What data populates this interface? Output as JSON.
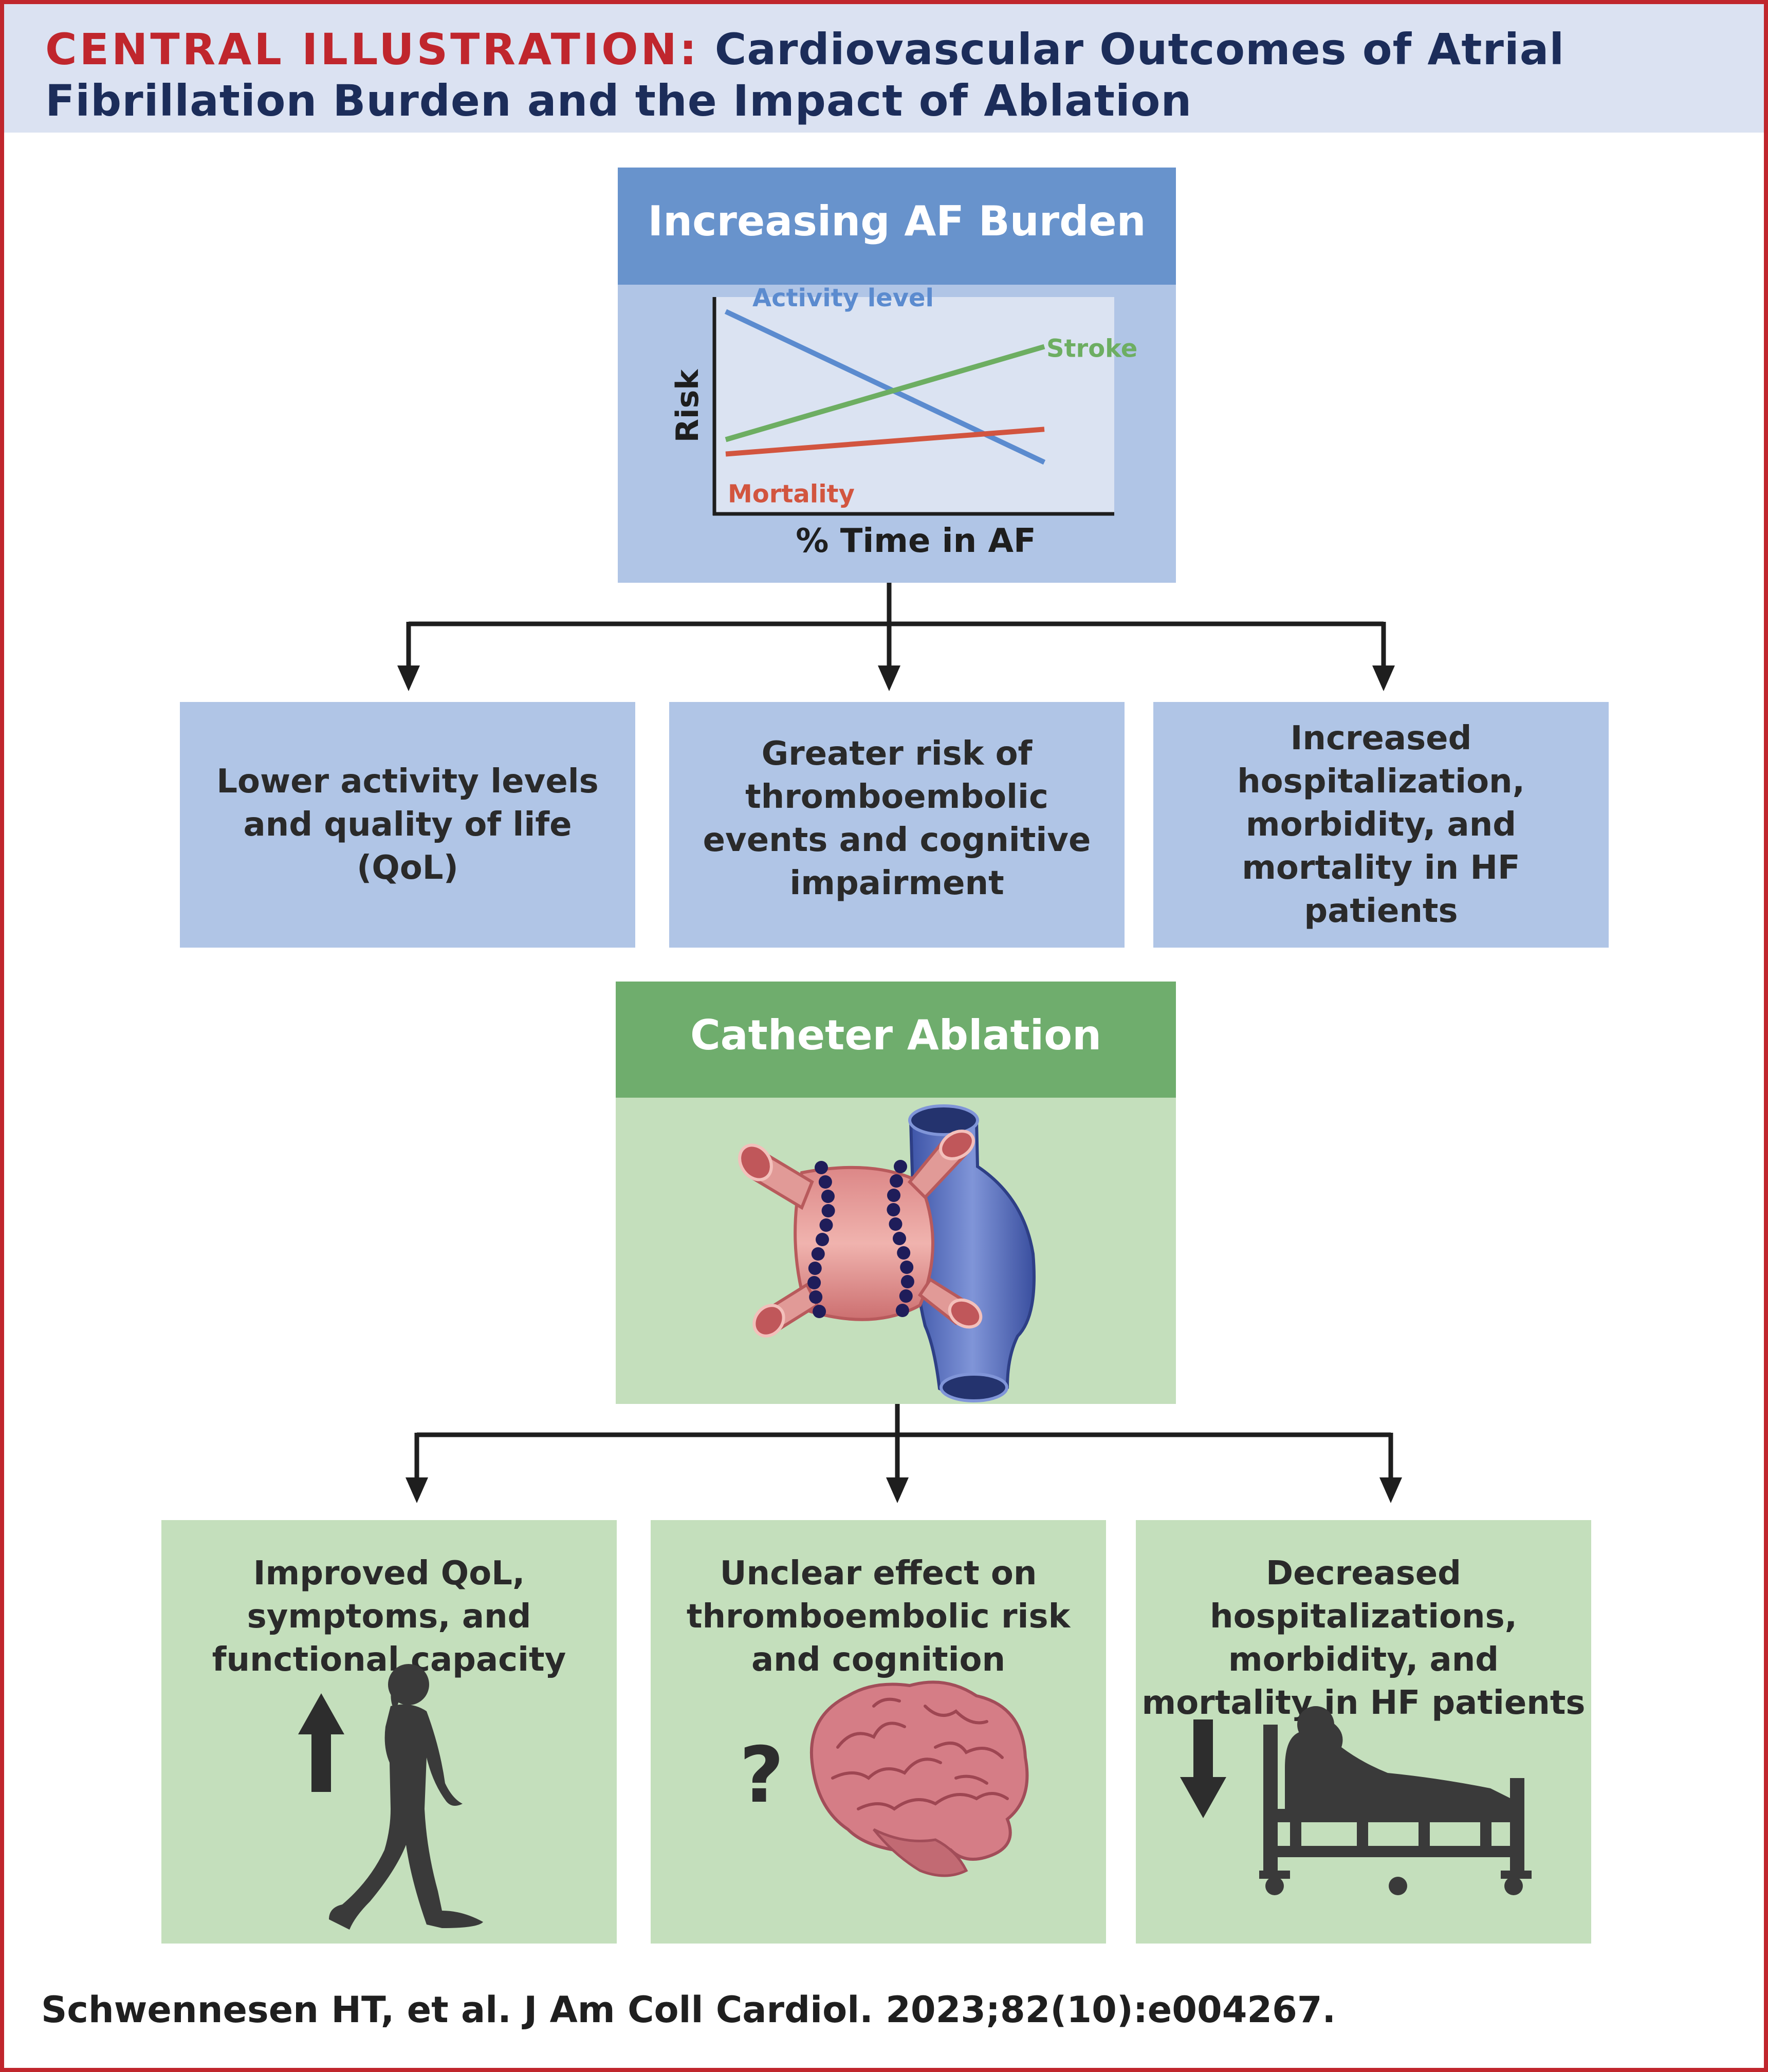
{
  "header": {
    "label": "CENTRAL ILLUSTRATION:",
    "title": "Cardiovascular Outcomes of Atrial Fibrillation Burden and the Impact of Ablation"
  },
  "af_burden": {
    "title": "Increasing AF Burden",
    "chart_data": {
      "type": "line",
      "xlabel": "% Time in AF",
      "ylabel": "Risk",
      "x": [
        0,
        1
      ],
      "series": [
        {
          "name": "Activity level",
          "values": [
            0.93,
            0.2
          ],
          "color": "#5b8bcf"
        },
        {
          "name": "Stroke",
          "values": [
            0.31,
            0.76
          ],
          "color": "#6dae62"
        },
        {
          "name": "Mortality",
          "values": [
            0.24,
            0.36
          ],
          "color": "#d2553f"
        }
      ],
      "ylim": [
        0,
        1
      ],
      "grid": false,
      "legend": "inline labels"
    }
  },
  "burden_outcomes": [
    {
      "text": "Lower activity levels and quality of life (QoL)"
    },
    {
      "text": "Greater risk of thromboembolic events and cognitive impairment"
    },
    {
      "text": "Increased hospitalization, morbidity, and mortality in HF patients"
    }
  ],
  "ablation": {
    "title": "Catheter Ablation",
    "illustration": "heart-ablation-illustration"
  },
  "ablation_outcomes": [
    {
      "text": "Improved QoL, symptoms, and functional capacity",
      "icon": "walking-person-icon",
      "indicator": "arrow-up-icon"
    },
    {
      "text": "Unclear effect on thromboembolic risk and cognition",
      "icon": "brain-icon",
      "indicator": "?"
    },
    {
      "text": "Decreased hospitalizations, morbidity, and mortality in HF patients",
      "icon": "hospital-bed-icon",
      "indicator": "arrow-down-icon"
    }
  ],
  "citation": "Schwennesen HT, et al. J Am Coll Cardiol. 2023;82(10):e004267.",
  "colors": {
    "border": "#c0262d",
    "header_bg": "#dbe2f2",
    "blue_head": "#6893cc",
    "blue_body": "#b0c5e6",
    "green_head": "#6fad6d",
    "green_body": "#c4dfbc"
  }
}
